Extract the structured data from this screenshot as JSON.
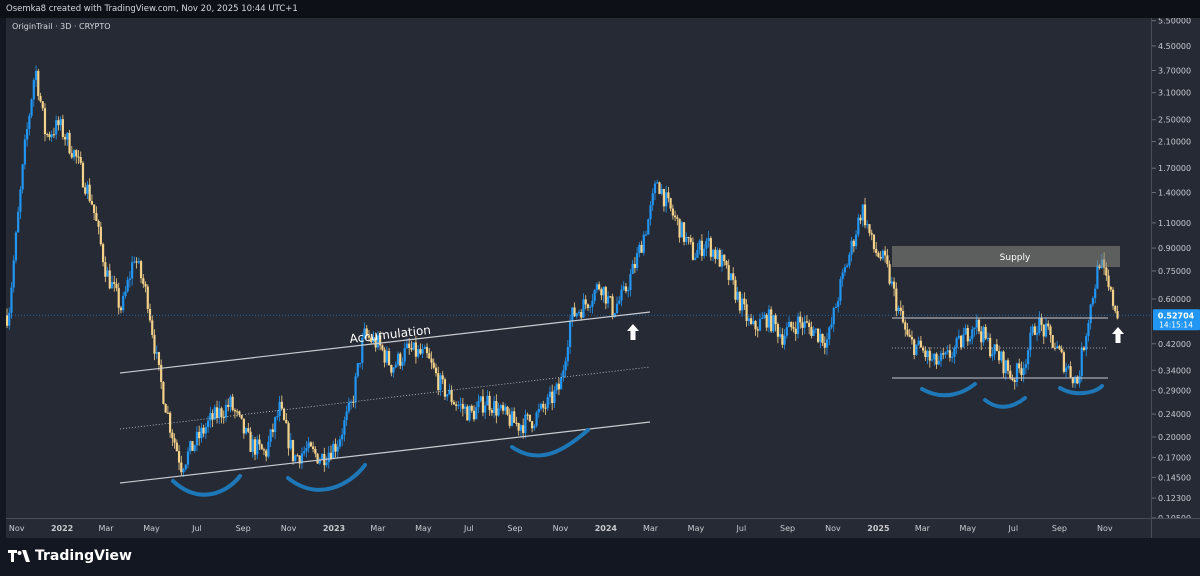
{
  "header": {
    "attribution": "Osemka8 created with TradingView.com, Nov 20, 2025 10:44 UTC+1"
  },
  "chart": {
    "symbol": "OriginTrail · 3D · CRYPTO"
  },
  "footer": {
    "brand": "TradingView"
  },
  "colors": {
    "background": "#262a35",
    "candle_up": "#2196f3",
    "candle_down": "#f5d28a",
    "current_price": "#2196f3",
    "annotation_curve": "#1e78b8",
    "supply_zone": "#8a8a80"
  },
  "chart_data": {
    "type": "candlestick",
    "scale": "log",
    "x_ticks": [
      "Nov",
      "2022",
      "Mar",
      "May",
      "Jul",
      "Sep",
      "Nov",
      "2023",
      "Mar",
      "May",
      "Jul",
      "Sep",
      "Nov",
      "2024",
      "Mar",
      "May",
      "Jul",
      "Sep",
      "Nov",
      "2025",
      "Mar",
      "May",
      "Jul",
      "Sep",
      "Nov"
    ],
    "y_ticks": [
      "5.50000",
      "4.50000",
      "3.70000",
      "3.10000",
      "2.50000",
      "2.10000",
      "1.70000",
      "1.40000",
      "1.10000",
      "0.90000",
      "0.75000",
      "0.60000",
      "0.52704",
      "0.42000",
      "0.34000",
      "0.29000",
      "0.24000",
      "0.20000",
      "0.17000",
      "0.14500",
      "0.12300",
      "0.10500"
    ],
    "current_price": {
      "value": "0.52704",
      "countdown": "14:15:14"
    },
    "annotations": [
      {
        "type": "text",
        "text": "Accumulation"
      },
      {
        "type": "zone",
        "text": "Supply"
      }
    ],
    "trend": [
      [
        "2021-10-20",
        0.5
      ],
      [
        "2021-11-12",
        2.0
      ],
      [
        "2021-11-26",
        3.8
      ],
      [
        "2021-12-10",
        2.2
      ],
      [
        "2021-12-28",
        2.4
      ],
      [
        "2022-01-18",
        1.9
      ],
      [
        "2022-02-10",
        1.3
      ],
      [
        "2022-03-01",
        0.75
      ],
      [
        "2022-03-22",
        0.55
      ],
      [
        "2022-04-08",
        0.85
      ],
      [
        "2022-04-26",
        0.6
      ],
      [
        "2022-05-10",
        0.34
      ],
      [
        "2022-05-26",
        0.22
      ],
      [
        "2022-06-10",
        0.16
      ],
      [
        "2022-06-28",
        0.19
      ],
      [
        "2022-07-20",
        0.23
      ],
      [
        "2022-08-15",
        0.26
      ],
      [
        "2022-09-10",
        0.19
      ],
      [
        "2022-10-01",
        0.175
      ],
      [
        "2022-10-20",
        0.25
      ],
      [
        "2022-11-08",
        0.17
      ],
      [
        "2022-11-25",
        0.18
      ],
      [
        "2022-12-15",
        0.17
      ],
      [
        "2023-01-05",
        0.19
      ],
      [
        "2023-01-25",
        0.26
      ],
      [
        "2023-02-10",
        0.45
      ],
      [
        "2023-03-01",
        0.42
      ],
      [
        "2023-03-20",
        0.35
      ],
      [
        "2023-04-10",
        0.4
      ],
      [
        "2023-05-05",
        0.38
      ],
      [
        "2023-05-25",
        0.3
      ],
      [
        "2023-06-15",
        0.26
      ],
      [
        "2023-07-05",
        0.24
      ],
      [
        "2023-07-25",
        0.27
      ],
      [
        "2023-08-15",
        0.24
      ],
      [
        "2023-09-05",
        0.22
      ],
      [
        "2023-09-25",
        0.23
      ],
      [
        "2023-10-15",
        0.26
      ],
      [
        "2023-11-01",
        0.3
      ],
      [
        "2023-11-15",
        0.52
      ],
      [
        "2023-12-05",
        0.58
      ],
      [
        "2023-12-25",
        0.68
      ],
      [
        "2024-01-10",
        0.55
      ],
      [
        "2024-01-25",
        0.62
      ],
      [
        "2024-02-10",
        0.8
      ],
      [
        "2024-02-28",
        1.15
      ],
      [
        "2024-03-10",
        1.55
      ],
      [
        "2024-03-25",
        1.25
      ],
      [
        "2024-04-10",
        1.05
      ],
      [
        "2024-04-28",
        0.85
      ],
      [
        "2024-05-15",
        0.95
      ],
      [
        "2024-06-05",
        0.8
      ],
      [
        "2024-06-25",
        0.62
      ],
      [
        "2024-07-15",
        0.47
      ],
      [
        "2024-08-05",
        0.52
      ],
      [
        "2024-08-25",
        0.45
      ],
      [
        "2024-09-15",
        0.5
      ],
      [
        "2024-10-05",
        0.47
      ],
      [
        "2024-10-25",
        0.43
      ],
      [
        "2024-11-10",
        0.65
      ],
      [
        "2024-11-28",
        0.95
      ],
      [
        "2024-12-10",
        1.25
      ],
      [
        "2024-12-25",
        0.9
      ],
      [
        "2025-01-10",
        0.8
      ],
      [
        "2025-01-28",
        0.55
      ],
      [
        "2025-02-10",
        0.43
      ],
      [
        "2025-02-28",
        0.4
      ],
      [
        "2025-03-15",
        0.36
      ],
      [
        "2025-04-01",
        0.37
      ],
      [
        "2025-04-20",
        0.42
      ],
      [
        "2025-05-10",
        0.5
      ],
      [
        "2025-05-28",
        0.42
      ],
      [
        "2025-06-15",
        0.37
      ],
      [
        "2025-07-01",
        0.32
      ],
      [
        "2025-07-15",
        0.36
      ],
      [
        "2025-08-01",
        0.5
      ],
      [
        "2025-08-20",
        0.44
      ],
      [
        "2025-09-05",
        0.37
      ],
      [
        "2025-09-25",
        0.31
      ],
      [
        "2025-10-10",
        0.52
      ],
      [
        "2025-10-25",
        0.82
      ],
      [
        "2025-11-08",
        0.62
      ],
      [
        "2025-11-20",
        0.527
      ]
    ]
  }
}
